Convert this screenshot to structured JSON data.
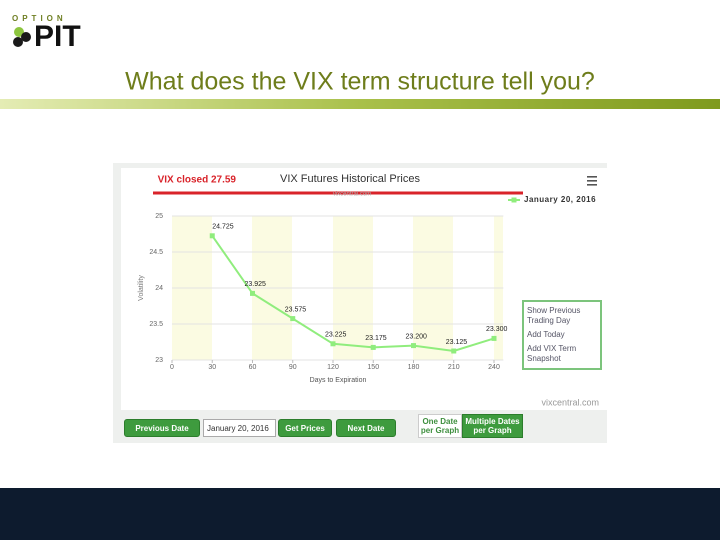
{
  "header": {
    "logo_top": "OPTION",
    "logo_main": "PIT",
    "title": "What does the VIX term structure tell you?"
  },
  "chart_data": {
    "type": "line",
    "title": "VIX Futures Historical Prices",
    "subtitle": "vixcentral.com",
    "annotation": "VIX closed 27.59",
    "x_label": "Days to Expiration",
    "y_label": "Volatility",
    "x": [
      30,
      60,
      90,
      120,
      150,
      180,
      210,
      240
    ],
    "series": [
      {
        "name": "January 20, 2016",
        "color": "#90ed7d",
        "values": [
          24.725,
          23.925,
          23.575,
          23.225,
          23.175,
          23.2,
          23.125,
          23.3
        ],
        "value_labels": [
          "24.725",
          "23.925",
          "23.575",
          "23.225",
          "23.175",
          "23.200",
          "23.125",
          "23.300"
        ]
      }
    ],
    "xlim": [
      0,
      247
    ],
    "xticks": [
      0,
      30,
      60,
      90,
      120,
      150,
      180,
      210,
      240
    ],
    "ylim": [
      23,
      25
    ],
    "yticks": [
      23,
      23.5,
      24,
      24.5,
      25
    ],
    "credit": "vixcentral.com"
  },
  "context_menu": [
    "Show Previous Trading Day",
    "Add Today",
    "Add VIX Term Snapshot"
  ],
  "controls": {
    "previous": "Previous Date",
    "date": "January 20, 2016",
    "get": "Get Prices",
    "next": "Next Date",
    "one": "One Date per Graph",
    "multiple": "Multiple Dates per Graph"
  }
}
